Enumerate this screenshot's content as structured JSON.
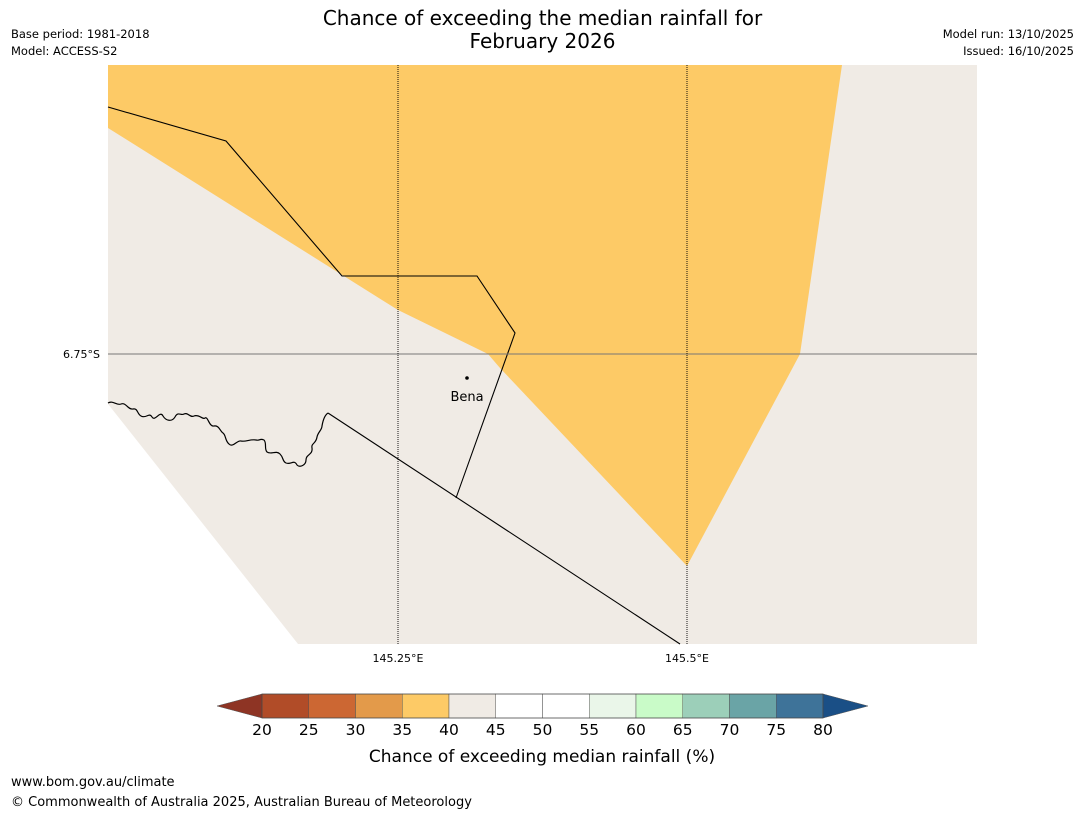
{
  "header": {
    "title_line1": "Chance of exceeding the median rainfall for",
    "title_line2": "February 2026",
    "base_period": "Base period: 1981-2018",
    "model": "Model: ACCESS-S2",
    "model_run": "Model run: 13/10/2025",
    "issued": "Issued: 16/10/2025"
  },
  "map": {
    "lat_label": "6.75°S",
    "lon_labels": [
      "145.25°E",
      "145.5°E"
    ],
    "place_label": "Bena",
    "colors": {
      "orange": "#fdca66",
      "neutral": "#f0ebe5",
      "ocean": "#ffffff"
    }
  },
  "colorbar": {
    "title": "Chance of exceeding median rainfall (%)",
    "ticks": [
      "20",
      "25",
      "30",
      "35",
      "40",
      "45",
      "50",
      "55",
      "60",
      "65",
      "70",
      "75",
      "80"
    ],
    "low_extend_color": "#8e3424",
    "high_extend_color": "#1a4f86",
    "colors": [
      "#b14c28",
      "#cc6733",
      "#e39a4a",
      "#fdca66",
      "#f0ebe5",
      "#ffffff",
      "#ffffff",
      "#eaf6e9",
      "#c9fbc8",
      "#9ccfb9",
      "#6aa4a6",
      "#3e7399"
    ]
  },
  "footer": {
    "url": "www.bom.gov.au/climate",
    "copyright": "© Commonwealth of Australia 2025, Australian Bureau of Meteorology"
  }
}
